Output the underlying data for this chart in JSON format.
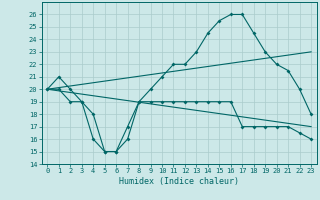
{
  "bg_color": "#cce8e8",
  "grid_color": "#aacccc",
  "line_color": "#006666",
  "x_label": "Humidex (Indice chaleur)",
  "ylim": [
    14,
    27
  ],
  "xlim": [
    -0.5,
    23.5
  ],
  "y_ticks": [
    14,
    15,
    16,
    17,
    18,
    19,
    20,
    21,
    22,
    23,
    24,
    25,
    26
  ],
  "x_ticks": [
    0,
    1,
    2,
    3,
    4,
    5,
    6,
    7,
    8,
    9,
    10,
    11,
    12,
    13,
    14,
    15,
    16,
    17,
    18,
    19,
    20,
    21,
    22,
    23
  ],
  "line1_x": [
    0,
    1,
    2,
    3,
    4,
    5,
    6,
    7,
    8,
    9,
    10,
    11,
    12,
    13,
    14,
    15,
    16,
    17,
    18,
    19,
    20,
    21,
    22,
    23
  ],
  "line1_y": [
    20,
    21,
    20,
    19,
    18,
    15,
    15,
    16,
    19,
    20,
    21,
    22,
    22,
    23,
    24.5,
    25.5,
    26,
    26,
    24.5,
    23,
    22,
    21.5,
    20,
    18
  ],
  "line2_x": [
    0,
    1,
    2,
    3,
    4,
    5,
    6,
    7,
    8,
    9,
    10,
    11,
    12,
    13,
    14,
    15,
    16,
    17,
    18,
    19,
    20,
    21,
    22,
    23
  ],
  "line2_y": [
    20,
    20,
    19,
    19,
    16,
    15,
    15,
    17,
    19,
    19,
    19,
    19,
    19,
    19,
    19,
    19,
    19,
    17,
    17,
    17,
    17,
    17,
    16.5,
    16
  ],
  "line3_x": [
    0,
    23
  ],
  "line3_y": [
    20,
    23
  ],
  "line4_x": [
    0,
    23
  ],
  "line4_y": [
    20,
    17
  ]
}
